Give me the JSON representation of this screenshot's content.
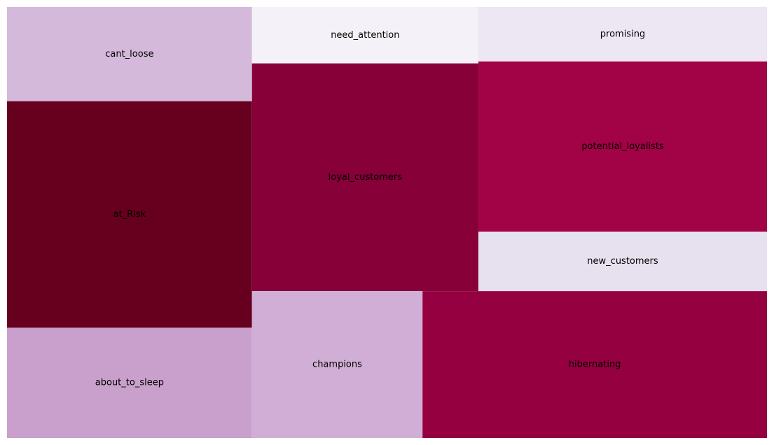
{
  "chart_data": {
    "type": "treemap",
    "tiles": [
      {
        "label": "cant_loose",
        "value": 47,
        "color": "#d4b9da"
      },
      {
        "label": "at_Risk",
        "value": 113,
        "color": "#67001f"
      },
      {
        "label": "about_to_sleep",
        "value": 55,
        "color": "#c9a0cb"
      },
      {
        "label": "need_attention",
        "value": 26,
        "color": "#f4f2f8"
      },
      {
        "label": "loyal_customers",
        "value": 105,
        "color": "#870037"
      },
      {
        "label": "champions",
        "value": 51,
        "color": "#d1aed5"
      },
      {
        "label": "promising",
        "value": 32,
        "color": "#ede6f3"
      },
      {
        "label": "potential_loyalists",
        "value": 100,
        "color": "#a20246"
      },
      {
        "label": "new_customers",
        "value": 35,
        "color": "#e7e1ef"
      },
      {
        "label": "hibernating",
        "value": 103,
        "color": "#940040"
      }
    ]
  }
}
